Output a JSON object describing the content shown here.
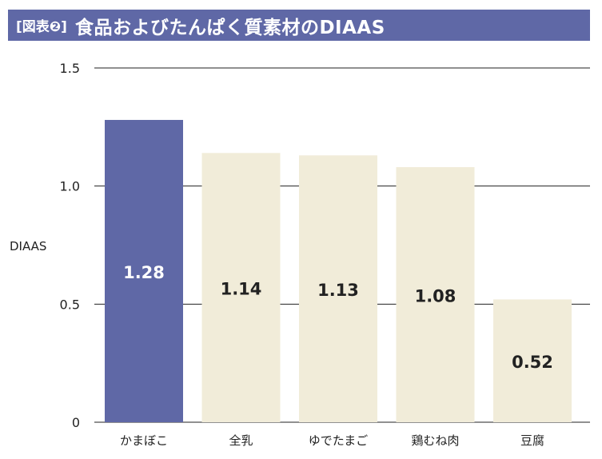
{
  "header": {
    "tag": "[図表❷]",
    "title": "食品およびたんぱく質素材のDIAAS"
  },
  "colors": {
    "highlight": "#5f68a6",
    "bar": "#f1ecd9",
    "title_bg": "#5f68a6"
  },
  "chart_data": {
    "type": "bar",
    "title": "食品およびたんぱく質素材のDIAAS",
    "ylabel": "DIAAS",
    "xlabel": "",
    "categories": [
      "かまぼこ",
      "全乳",
      "ゆでたまご",
      "鶏むね肉",
      "豆腐"
    ],
    "values": [
      1.28,
      1.14,
      1.13,
      1.08,
      0.52
    ],
    "value_labels": [
      "1.28",
      "1.14",
      "1.13",
      "1.08",
      "0.52"
    ],
    "highlight_index": 0,
    "ylim": [
      0,
      1.5
    ],
    "yticks": [
      0,
      0.5,
      1.0,
      1.5
    ],
    "ytick_labels": [
      "0",
      "0.5",
      "1.0",
      "1.5"
    ],
    "grid": true,
    "legend": "none"
  }
}
